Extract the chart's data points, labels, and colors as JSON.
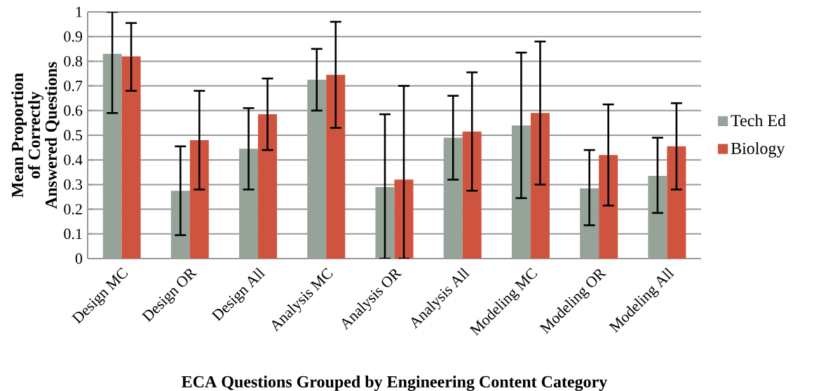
{
  "chart_data": {
    "type": "bar",
    "xlabel": "ECA Questions Grouped by Engineering Content Category",
    "ylabel": "Mean Proportion of Correctly Answered Questions",
    "categories": [
      "Design MC",
      "Design OR",
      "Design All",
      "Analysis MC",
      "Analysis OR",
      "Analysis All",
      "Modeling MC",
      "Modeling OR",
      "Modeling All"
    ],
    "series": [
      {
        "name": "Tech Ed",
        "color": "#95a398",
        "values": [
          0.83,
          0.275,
          0.445,
          0.725,
          0.29,
          0.49,
          0.54,
          0.285,
          0.335
        ],
        "errors": [
          [
            0.59,
            1.0
          ],
          [
            0.095,
            0.455
          ],
          [
            0.28,
            0.61
          ],
          [
            0.6,
            0.85
          ],
          [
            0,
            0.585
          ],
          [
            0.32,
            0.66
          ],
          [
            0.245,
            0.835
          ],
          [
            0.135,
            0.44
          ],
          [
            0.185,
            0.49
          ]
        ]
      },
      {
        "name": "Biology",
        "color": "#cf5440",
        "values": [
          0.82,
          0.48,
          0.585,
          0.745,
          0.32,
          0.515,
          0.59,
          0.42,
          0.455
        ],
        "errors": [
          [
            0.68,
            0.955
          ],
          [
            0.28,
            0.68
          ],
          [
            0.44,
            0.73
          ],
          [
            0.53,
            0.96
          ],
          [
            0,
            0.7
          ],
          [
            0.275,
            0.755
          ],
          [
            0.3,
            0.88
          ],
          [
            0.215,
            0.625
          ],
          [
            0.28,
            0.63
          ]
        ]
      }
    ],
    "ylim": [
      0,
      1
    ],
    "yticks": [
      0,
      0.1,
      0.2,
      0.3,
      0.4,
      0.5,
      0.6,
      0.7,
      0.8,
      0.9,
      1
    ],
    "grid": "y",
    "legend": "right"
  }
}
